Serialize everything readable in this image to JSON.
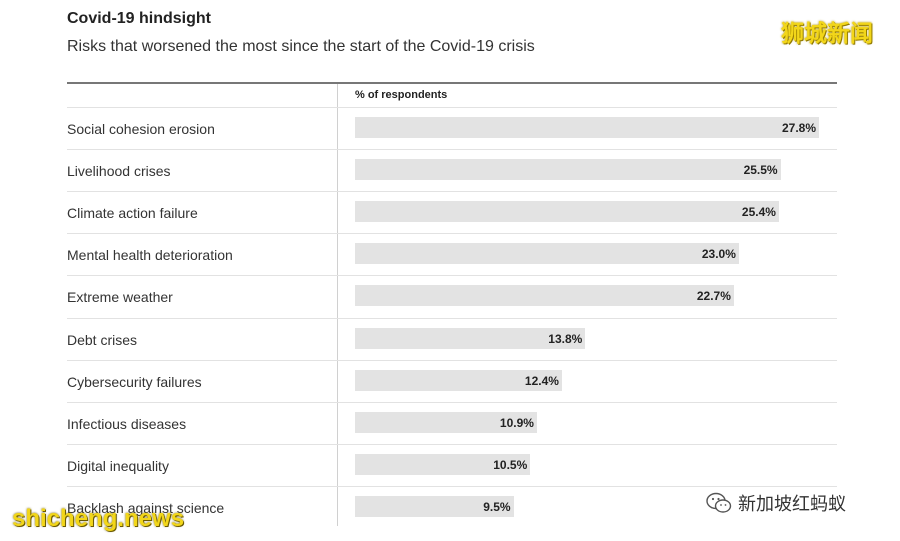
{
  "header": {
    "title": "Covid-19 hindsight",
    "subtitle": "Risks that worsened the most since the start of the Covid-19 crisis"
  },
  "table": {
    "column_header": "% of respondents"
  },
  "watermarks": {
    "top_right": "狮城新闻",
    "bottom_left": "shicheng.news",
    "bottom_right": "新加坡红蚂蚁",
    "bottom_right_icon": "wechat-icon"
  },
  "colors": {
    "bar": "#e3e3e3",
    "watermark": "#f2d61a"
  },
  "chart_data": {
    "type": "bar",
    "orientation": "horizontal",
    "title": "Covid-19 hindsight",
    "subtitle": "Risks that worsened the most since the start of the Covid-19 crisis",
    "xlabel": "% of respondents",
    "ylabel": "",
    "xlim": [
      0,
      27.8
    ],
    "grid": false,
    "categories": [
      "Social cohesion erosion",
      "Livelihood crises",
      "Climate action failure",
      "Mental health deterioration",
      "Extreme weather",
      "Debt crises",
      "Cybersecurity failures",
      "Infectious diseases",
      "Digital inequality",
      "Backlash against science"
    ],
    "values": [
      27.8,
      25.5,
      25.4,
      23.0,
      22.7,
      13.8,
      12.4,
      10.9,
      10.5,
      9.5
    ],
    "value_labels": [
      "27.8%",
      "25.5%",
      "25.4%",
      "23.0%",
      "22.7%",
      "13.8%",
      "12.4%",
      "10.9%",
      "10.5%",
      "9.5%"
    ]
  }
}
